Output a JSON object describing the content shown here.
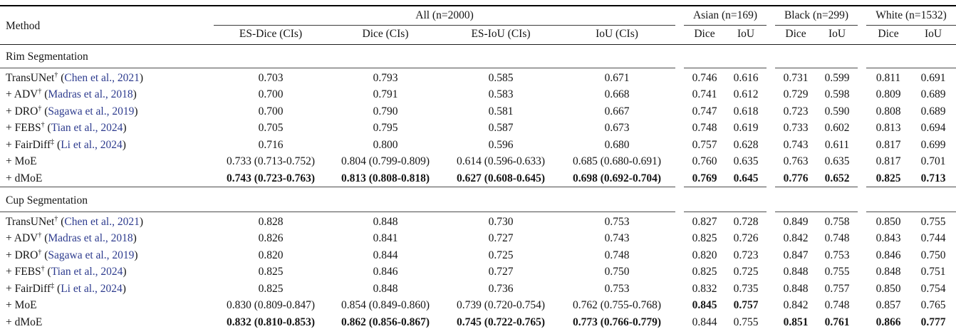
{
  "colors": {
    "citation_blue": "#2d3b8e",
    "text": "#151515",
    "rule_dark": "#000000",
    "rule_light": "#4d4d4d",
    "background": "#ffffff"
  },
  "table": {
    "method_header": "Method",
    "cite_paren_open": " (",
    "cite_paren_close": ")",
    "groups": [
      {
        "label": "All (n=2000)",
        "subcols": [
          "ES-Dice (CIs)",
          "Dice (CIs)",
          "ES-IoU (CIs)",
          "IoU (CIs)"
        ]
      },
      {
        "label": "Asian (n=169)",
        "subcols": [
          "Dice",
          "IoU"
        ]
      },
      {
        "label": "Black (n=299)",
        "subcols": [
          "Dice",
          "IoU"
        ]
      },
      {
        "label": "White (n=1532)",
        "subcols": [
          "Dice",
          "IoU"
        ]
      }
    ],
    "sections": [
      {
        "title": "Rim Segmentation",
        "rows": [
          {
            "method": "TransUNet",
            "marker": "†",
            "cite": "Chen et al., 2021",
            "values": [
              "0.703",
              "0.793",
              "0.585",
              "0.671",
              "0.746",
              "0.616",
              "0.731",
              "0.599",
              "0.811",
              "0.691"
            ],
            "bold": [
              0,
              0,
              0,
              0,
              0,
              0,
              0,
              0,
              0,
              0
            ]
          },
          {
            "method": "+ ADV",
            "marker": "†",
            "cite": "Madras et al., 2018",
            "values": [
              "0.700",
              "0.791",
              "0.583",
              "0.668",
              "0.741",
              "0.612",
              "0.729",
              "0.598",
              "0.809",
              "0.689"
            ],
            "bold": [
              0,
              0,
              0,
              0,
              0,
              0,
              0,
              0,
              0,
              0
            ]
          },
          {
            "method": "+ DRO",
            "marker": "†",
            "cite": "Sagawa et al., 2019",
            "values": [
              "0.700",
              "0.790",
              "0.581",
              "0.667",
              "0.747",
              "0.618",
              "0.723",
              "0.590",
              "0.808",
              "0.689"
            ],
            "bold": [
              0,
              0,
              0,
              0,
              0,
              0,
              0,
              0,
              0,
              0
            ]
          },
          {
            "method": "+ FEBS",
            "marker": "†",
            "cite": "Tian et al., 2024",
            "values": [
              "0.705",
              "0.795",
              "0.587",
              "0.673",
              "0.748",
              "0.619",
              "0.733",
              "0.602",
              "0.813",
              "0.694"
            ],
            "bold": [
              0,
              0,
              0,
              0,
              0,
              0,
              0,
              0,
              0,
              0
            ]
          },
          {
            "method": "+ FairDiff",
            "marker": "‡",
            "cite": "Li et al., 2024",
            "values": [
              "0.716",
              "0.800",
              "0.596",
              "0.680",
              "0.757",
              "0.628",
              "0.743",
              "0.611",
              "0.817",
              "0.699"
            ],
            "bold": [
              0,
              0,
              0,
              0,
              0,
              0,
              0,
              0,
              0,
              0
            ]
          },
          {
            "method": "+ MoE",
            "marker": "",
            "cite": "",
            "values": [
              "0.733 (0.713-0.752)",
              "0.804 (0.799-0.809)",
              "0.614 (0.596-0.633)",
              "0.685 (0.680-0.691)",
              "0.760",
              "0.635",
              "0.763",
              "0.635",
              "0.817",
              "0.701"
            ],
            "bold": [
              0,
              0,
              0,
              0,
              0,
              0,
              0,
              0,
              0,
              0
            ]
          },
          {
            "method": "+ dMoE",
            "marker": "",
            "cite": "",
            "values": [
              "0.743 (0.723-0.763)",
              "0.813 (0.808-0.818)",
              "0.627 (0.608-0.645)",
              "0.698 (0.692-0.704)",
              "0.769",
              "0.645",
              "0.776",
              "0.652",
              "0.825",
              "0.713"
            ],
            "bold": [
              1,
              1,
              1,
              1,
              1,
              1,
              1,
              1,
              1,
              1
            ]
          }
        ]
      },
      {
        "title": "Cup Segmentation",
        "rows": [
          {
            "method": "TransUNet",
            "marker": "†",
            "cite": "Chen et al., 2021",
            "values": [
              "0.828",
              "0.848",
              "0.730",
              "0.753",
              "0.827",
              "0.728",
              "0.849",
              "0.758",
              "0.850",
              "0.755"
            ],
            "bold": [
              0,
              0,
              0,
              0,
              0,
              0,
              0,
              0,
              0,
              0
            ]
          },
          {
            "method": "+ ADV",
            "marker": "†",
            "cite": "Madras et al., 2018",
            "values": [
              "0.826",
              "0.841",
              "0.727",
              "0.743",
              "0.825",
              "0.726",
              "0.842",
              "0.748",
              "0.843",
              "0.744"
            ],
            "bold": [
              0,
              0,
              0,
              0,
              0,
              0,
              0,
              0,
              0,
              0
            ]
          },
          {
            "method": "+ DRO",
            "marker": "†",
            "cite": "Sagawa et al., 2019",
            "values": [
              "0.820",
              "0.844",
              "0.725",
              "0.748",
              "0.820",
              "0.723",
              "0.847",
              "0.753",
              "0.846",
              "0.750"
            ],
            "bold": [
              0,
              0,
              0,
              0,
              0,
              0,
              0,
              0,
              0,
              0
            ]
          },
          {
            "method": "+ FEBS",
            "marker": "†",
            "cite": "Tian et al., 2024",
            "values": [
              "0.825",
              "0.846",
              "0.727",
              "0.750",
              "0.825",
              "0.725",
              "0.848",
              "0.755",
              "0.848",
              "0.751"
            ],
            "bold": [
              0,
              0,
              0,
              0,
              0,
              0,
              0,
              0,
              0,
              0
            ]
          },
          {
            "method": "+ FairDiff",
            "marker": "‡",
            "cite": "Li et al., 2024",
            "values": [
              "0.825",
              "0.848",
              "0.736",
              "0.753",
              "0.832",
              "0.735",
              "0.848",
              "0.757",
              "0.850",
              "0.754"
            ],
            "bold": [
              0,
              0,
              0,
              0,
              0,
              0,
              0,
              0,
              0,
              0
            ]
          },
          {
            "method": "+ MoE",
            "marker": "",
            "cite": "",
            "values": [
              "0.830 (0.809-0.847)",
              "0.854 (0.849-0.860)",
              "0.739 (0.720-0.754)",
              "0.762 (0.755-0.768)",
              "0.845",
              "0.757",
              "0.842",
              "0.748",
              "0.857",
              "0.765"
            ],
            "bold": [
              0,
              0,
              0,
              0,
              1,
              1,
              0,
              0,
              0,
              0
            ]
          },
          {
            "method": "+ dMoE",
            "marker": "",
            "cite": "",
            "values": [
              "0.832 (0.810-0.853)",
              "0.862 (0.856-0.867)",
              "0.745 (0.722-0.765)",
              "0.773 (0.766-0.779)",
              "0.844",
              "0.755",
              "0.851",
              "0.761",
              "0.866",
              "0.777"
            ],
            "bold": [
              1,
              1,
              1,
              1,
              0,
              0,
              1,
              1,
              1,
              1
            ]
          }
        ]
      }
    ]
  }
}
